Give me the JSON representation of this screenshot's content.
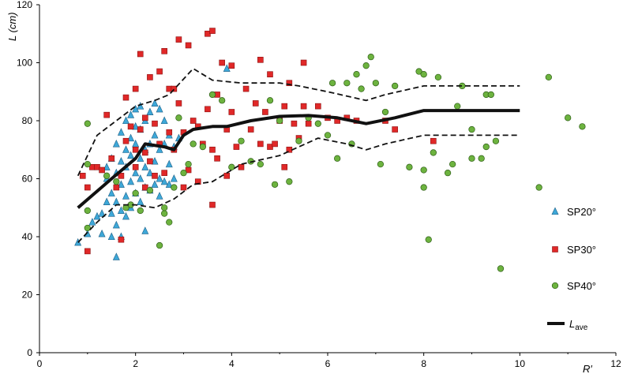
{
  "chart_data": {
    "type": "scatter",
    "xlabel": "R′",
    "ylabel": "L (cm)",
    "xlim": [
      0,
      12
    ],
    "ylim": [
      0,
      120
    ],
    "x_ticks": [
      0,
      2,
      4,
      6,
      8,
      10,
      12
    ],
    "y_ticks": [
      0,
      20,
      40,
      60,
      80,
      100,
      120
    ],
    "legend": {
      "position": "right",
      "items": [
        {
          "label": "SP20°",
          "marker": "triangle",
          "color": "#3ea8d8"
        },
        {
          "label": "SP30°",
          "marker": "square",
          "color": "#e02828"
        },
        {
          "label": "SP40°",
          "marker": "circle",
          "color": "#6db33f"
        },
        {
          "label_main": "L",
          "label_sub": "ave",
          "marker": "line",
          "color": "#111111"
        }
      ]
    },
    "series": [
      {
        "name": "SP20°",
        "marker": "triangle",
        "color": "#3ea8d8",
        "points": [
          [
            0.8,
            38
          ],
          [
            1.0,
            41
          ],
          [
            1.1,
            45
          ],
          [
            1.2,
            47
          ],
          [
            1.3,
            41
          ],
          [
            1.3,
            48
          ],
          [
            1.4,
            52
          ],
          [
            1.4,
            60
          ],
          [
            1.4,
            64
          ],
          [
            1.5,
            40
          ],
          [
            1.5,
            48
          ],
          [
            1.5,
            55
          ],
          [
            1.5,
            67
          ],
          [
            1.6,
            33
          ],
          [
            1.6,
            44
          ],
          [
            1.6,
            52
          ],
          [
            1.6,
            62
          ],
          [
            1.6,
            72
          ],
          [
            1.7,
            40
          ],
          [
            1.7,
            49
          ],
          [
            1.7,
            58
          ],
          [
            1.7,
            66
          ],
          [
            1.7,
            76
          ],
          [
            1.8,
            47
          ],
          [
            1.8,
            54
          ],
          [
            1.8,
            64
          ],
          [
            1.8,
            70
          ],
          [
            1.8,
            80
          ],
          [
            1.9,
            50
          ],
          [
            1.9,
            59
          ],
          [
            1.9,
            68
          ],
          [
            1.9,
            74
          ],
          [
            1.9,
            82
          ],
          [
            2.0,
            55
          ],
          [
            2.0,
            62
          ],
          [
            2.0,
            72
          ],
          [
            2.0,
            78
          ],
          [
            2.0,
            84
          ],
          [
            2.1,
            52
          ],
          [
            2.1,
            60
          ],
          [
            2.1,
            67
          ],
          [
            2.1,
            77
          ],
          [
            2.1,
            85
          ],
          [
            2.2,
            42
          ],
          [
            2.2,
            57
          ],
          [
            2.2,
            64
          ],
          [
            2.2,
            70
          ],
          [
            2.2,
            80
          ],
          [
            2.3,
            56
          ],
          [
            2.3,
            62
          ],
          [
            2.3,
            72
          ],
          [
            2.3,
            83
          ],
          [
            2.4,
            58
          ],
          [
            2.4,
            66
          ],
          [
            2.4,
            75
          ],
          [
            2.4,
            86
          ],
          [
            2.5,
            54
          ],
          [
            2.5,
            60
          ],
          [
            2.5,
            70
          ],
          [
            2.5,
            84
          ],
          [
            2.6,
            59
          ],
          [
            2.6,
            72
          ],
          [
            2.6,
            80
          ],
          [
            2.7,
            58
          ],
          [
            2.7,
            65
          ],
          [
            2.7,
            75
          ],
          [
            2.8,
            60
          ],
          [
            2.8,
            71
          ],
          [
            2.9,
            74
          ],
          [
            3.9,
            98
          ]
        ]
      },
      {
        "name": "SP30°",
        "marker": "square",
        "color": "#e02828",
        "points": [
          [
            0.9,
            61
          ],
          [
            1.0,
            35
          ],
          [
            1.0,
            57
          ],
          [
            1.1,
            64
          ],
          [
            1.2,
            64
          ],
          [
            1.3,
            63
          ],
          [
            1.4,
            82
          ],
          [
            1.5,
            67
          ],
          [
            1.6,
            57
          ],
          [
            1.7,
            39
          ],
          [
            1.7,
            61
          ],
          [
            1.8,
            73
          ],
          [
            1.8,
            88
          ],
          [
            1.9,
            78
          ],
          [
            2.0,
            91
          ],
          [
            2.0,
            64
          ],
          [
            2.0,
            70
          ],
          [
            2.1,
            77
          ],
          [
            2.1,
            103
          ],
          [
            2.2,
            57
          ],
          [
            2.2,
            69
          ],
          [
            2.2,
            81
          ],
          [
            2.3,
            66
          ],
          [
            2.3,
            95
          ],
          [
            2.4,
            79
          ],
          [
            2.4,
            61
          ],
          [
            2.5,
            97
          ],
          [
            2.5,
            72
          ],
          [
            2.6,
            104
          ],
          [
            2.6,
            62
          ],
          [
            2.7,
            91
          ],
          [
            2.7,
            76
          ],
          [
            2.8,
            91
          ],
          [
            2.8,
            70
          ],
          [
            2.9,
            108
          ],
          [
            2.9,
            86
          ],
          [
            3.0,
            57
          ],
          [
            3.0,
            76
          ],
          [
            3.1,
            106
          ],
          [
            3.1,
            63
          ],
          [
            3.2,
            80
          ],
          [
            3.3,
            78
          ],
          [
            3.3,
            59
          ],
          [
            3.4,
            72
          ],
          [
            3.5,
            110
          ],
          [
            3.5,
            84
          ],
          [
            3.6,
            51
          ],
          [
            3.6,
            70
          ],
          [
            3.6,
            111
          ],
          [
            3.7,
            89
          ],
          [
            3.7,
            67
          ],
          [
            3.8,
            100
          ],
          [
            3.9,
            77
          ],
          [
            3.9,
            61
          ],
          [
            4.0,
            83
          ],
          [
            4.0,
            99
          ],
          [
            4.1,
            71
          ],
          [
            4.2,
            64
          ],
          [
            4.3,
            91
          ],
          [
            4.4,
            77
          ],
          [
            4.5,
            86
          ],
          [
            4.6,
            101
          ],
          [
            4.6,
            72
          ],
          [
            4.7,
            83
          ],
          [
            4.8,
            96
          ],
          [
            4.8,
            71
          ],
          [
            4.9,
            72
          ],
          [
            5.0,
            80
          ],
          [
            5.1,
            85
          ],
          [
            5.1,
            64
          ],
          [
            5.2,
            93
          ],
          [
            5.2,
            70
          ],
          [
            5.3,
            79
          ],
          [
            5.4,
            74
          ],
          [
            5.5,
            100
          ],
          [
            5.5,
            85
          ],
          [
            5.6,
            79
          ],
          [
            5.8,
            85
          ],
          [
            6.0,
            81
          ],
          [
            6.2,
            80
          ],
          [
            6.4,
            81
          ],
          [
            6.6,
            80
          ],
          [
            7.2,
            80
          ],
          [
            7.4,
            77
          ],
          [
            8.2,
            73
          ]
        ]
      },
      {
        "name": "SP40°",
        "marker": "circle",
        "color": "#6db33f",
        "points": [
          [
            1.0,
            79
          ],
          [
            1.0,
            65
          ],
          [
            1.0,
            49
          ],
          [
            1.0,
            43
          ],
          [
            1.4,
            61
          ],
          [
            1.6,
            59
          ],
          [
            1.8,
            50
          ],
          [
            1.9,
            51
          ],
          [
            2.0,
            55
          ],
          [
            2.1,
            49
          ],
          [
            2.3,
            56
          ],
          [
            2.5,
            37
          ],
          [
            2.6,
            48
          ],
          [
            2.6,
            50
          ],
          [
            2.7,
            45
          ],
          [
            2.8,
            57
          ],
          [
            2.9,
            81
          ],
          [
            3.0,
            62
          ],
          [
            3.1,
            65
          ],
          [
            3.2,
            72
          ],
          [
            3.4,
            71
          ],
          [
            3.6,
            89
          ],
          [
            3.8,
            87
          ],
          [
            4.0,
            64
          ],
          [
            4.2,
            73
          ],
          [
            4.4,
            66
          ],
          [
            4.6,
            65
          ],
          [
            4.8,
            87
          ],
          [
            4.9,
            58
          ],
          [
            5.0,
            80
          ],
          [
            5.2,
            59
          ],
          [
            5.4,
            73
          ],
          [
            5.6,
            81
          ],
          [
            5.8,
            79
          ],
          [
            6.0,
            75
          ],
          [
            6.1,
            93
          ],
          [
            6.2,
            67
          ],
          [
            6.4,
            93
          ],
          [
            6.5,
            72
          ],
          [
            6.6,
            96
          ],
          [
            6.7,
            91
          ],
          [
            6.8,
            99
          ],
          [
            6.9,
            102
          ],
          [
            7.0,
            93
          ],
          [
            7.1,
            65
          ],
          [
            7.2,
            83
          ],
          [
            7.4,
            92
          ],
          [
            7.7,
            64
          ],
          [
            7.9,
            97
          ],
          [
            8.0,
            96
          ],
          [
            8.0,
            63
          ],
          [
            8.1,
            39
          ],
          [
            8.2,
            69
          ],
          [
            8.3,
            95
          ],
          [
            8.5,
            62
          ],
          [
            8.6,
            65
          ],
          [
            8.7,
            85
          ],
          [
            8.8,
            92
          ],
          [
            9.0,
            77
          ],
          [
            9.0,
            67
          ],
          [
            9.2,
            67
          ],
          [
            9.3,
            89
          ],
          [
            9.3,
            71
          ],
          [
            9.4,
            89
          ],
          [
            9.5,
            73
          ],
          [
            9.6,
            29
          ],
          [
            10.4,
            57
          ],
          [
            10.6,
            95
          ],
          [
            11.0,
            81
          ],
          [
            11.3,
            78
          ],
          [
            8.0,
            57
          ]
        ]
      },
      {
        "name_main": "L",
        "name_sub": "ave",
        "type": "line",
        "style": "solid",
        "color": "#111111",
        "points": [
          [
            0.8,
            50
          ],
          [
            1.5,
            60
          ],
          [
            2.0,
            67
          ],
          [
            2.2,
            72
          ],
          [
            2.6,
            71
          ],
          [
            2.8,
            70
          ],
          [
            3.0,
            75
          ],
          [
            3.2,
            77
          ],
          [
            3.6,
            78
          ],
          [
            3.9,
            78
          ],
          [
            4.4,
            80
          ],
          [
            5.0,
            81.5
          ],
          [
            5.6,
            81.8
          ],
          [
            6.2,
            81
          ],
          [
            6.8,
            79
          ],
          [
            7.4,
            81
          ],
          [
            8.0,
            83.5
          ],
          [
            9.0,
            83.5
          ],
          [
            10.0,
            83.5
          ]
        ]
      },
      {
        "type": "line",
        "style": "dashed",
        "color": "#111111",
        "points": [
          [
            0.8,
            61
          ],
          [
            1.2,
            75
          ],
          [
            1.6,
            80
          ],
          [
            2.0,
            85
          ],
          [
            2.4,
            87
          ],
          [
            2.7,
            89
          ],
          [
            3.2,
            98
          ],
          [
            3.6,
            94
          ],
          [
            4.2,
            93
          ],
          [
            5.0,
            93
          ],
          [
            5.4,
            92
          ],
          [
            6.0,
            90
          ],
          [
            6.8,
            87
          ],
          [
            7.2,
            89
          ],
          [
            8.0,
            92
          ],
          [
            9.0,
            92
          ],
          [
            10.0,
            92
          ]
        ]
      },
      {
        "type": "line",
        "style": "dashed",
        "color": "#111111",
        "points": [
          [
            0.8,
            38
          ],
          [
            1.2,
            45
          ],
          [
            1.6,
            51
          ],
          [
            2.0,
            51
          ],
          [
            2.4,
            50
          ],
          [
            2.8,
            53
          ],
          [
            3.2,
            58
          ],
          [
            3.6,
            59
          ],
          [
            4.2,
            65
          ],
          [
            5.0,
            68
          ],
          [
            5.8,
            74
          ],
          [
            6.4,
            72
          ],
          [
            6.8,
            70
          ],
          [
            7.2,
            72
          ],
          [
            8.0,
            75
          ],
          [
            9.0,
            75
          ],
          [
            10.0,
            75
          ]
        ]
      }
    ]
  }
}
